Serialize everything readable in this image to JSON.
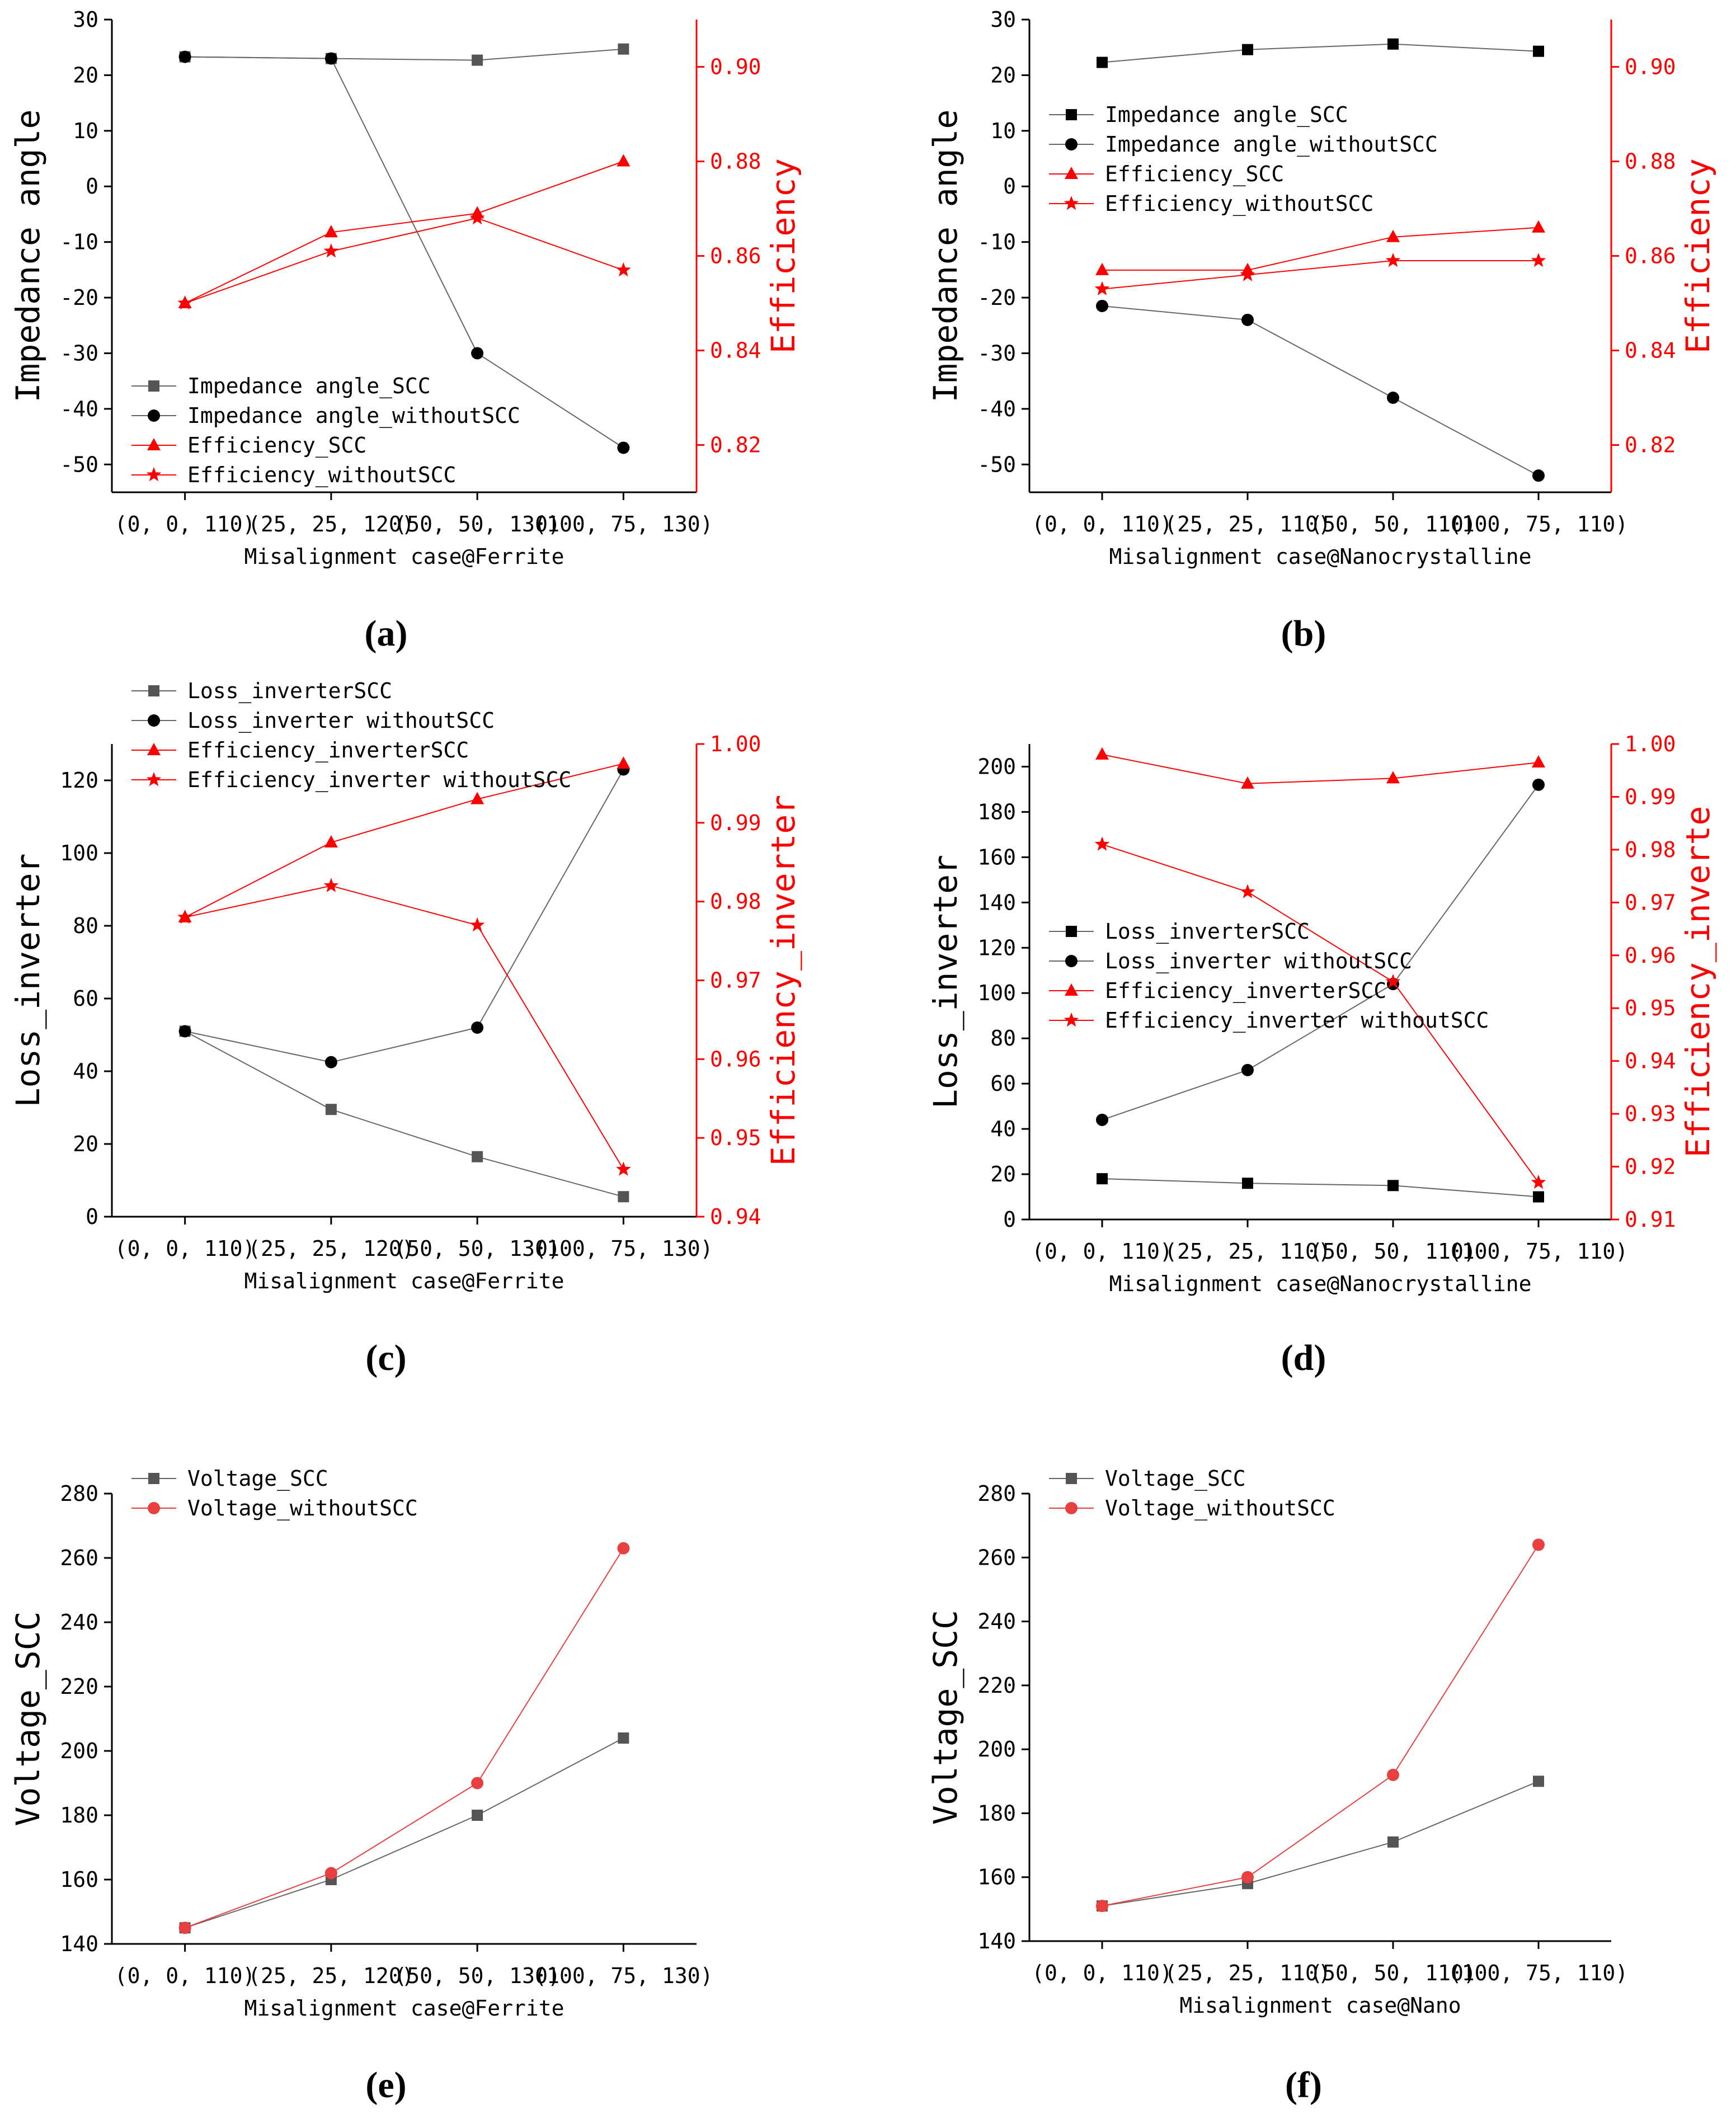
{
  "colors": {
    "scc": "#000000",
    "without": "#000000",
    "eff": "#ff0000",
    "ferriteGrey": "#555555",
    "voltRed": "#e84040",
    "lineGrey": "#888888"
  },
  "panel_labels": [
    "(a)",
    "(b)",
    "(c)",
    "(d)",
    "(e)",
    "(f)"
  ],
  "chart_data": [
    {
      "id": "a",
      "type": "line",
      "categories": [
        "(0, 0, 110)",
        "(25, 25, 120)",
        "(50, 50, 130)",
        "(100, 75, 130)"
      ],
      "xlabel": "Misalignment case@Ferrite",
      "ylabel": "Impedance angle",
      "ylim": [
        -55,
        30
      ],
      "yticks": [
        -50,
        -40,
        -30,
        -20,
        -10,
        0,
        10,
        20,
        30
      ],
      "ytick_labels": [
        "-50",
        "-40",
        "-30",
        "-20",
        "-10",
        "0",
        "10",
        "20",
        "30"
      ],
      "y2label": "Efficiency",
      "y2lim": [
        0.81,
        0.91
      ],
      "y2ticks": [
        0.82,
        0.84,
        0.86,
        0.88,
        0.9
      ],
      "y2tick_labels": [
        "0.82",
        "0.84",
        "0.86",
        "0.88",
        "0.90"
      ],
      "legend": "bottom-left",
      "series": [
        {
          "name": "Impedance angle_SCC",
          "axis": "left",
          "marker": "square",
          "color": "#555555",
          "values": [
            23.3,
            23,
            22.7,
            24.7
          ]
        },
        {
          "name": "Impedance angle_withoutSCC",
          "axis": "left",
          "marker": "circle",
          "color": "#000000",
          "values": [
            23.3,
            23,
            -30,
            -47
          ]
        },
        {
          "name": "Efficiency_SCC",
          "axis": "right",
          "marker": "triangle",
          "color": "#ff0000",
          "values": [
            0.85,
            0.865,
            0.869,
            0.88
          ]
        },
        {
          "name": "Efficiency_withoutSCC",
          "axis": "right",
          "marker": "star",
          "color": "#ff0000",
          "values": [
            0.85,
            0.861,
            0.868,
            0.857
          ]
        }
      ]
    },
    {
      "id": "b",
      "type": "line",
      "categories": [
        "(0, 0, 110)",
        "(25, 25, 110)",
        "(50, 50, 110)",
        "(100, 75, 110)"
      ],
      "xlabel": "Misalignment case@Nanocrystalline",
      "ylabel": "Impedance angle",
      "ylim": [
        -55,
        30
      ],
      "yticks": [
        -50,
        -40,
        -30,
        -20,
        -10,
        0,
        10,
        20,
        30
      ],
      "ytick_labels": [
        "-50",
        "-40",
        "-30",
        "-20",
        "-10",
        "0",
        "10",
        "20",
        "30"
      ],
      "y2label": "Efficiency",
      "y2lim": [
        0.81,
        0.91
      ],
      "y2ticks": [
        0.82,
        0.84,
        0.86,
        0.88,
        0.9
      ],
      "y2tick_labels": [
        "0.82",
        "0.84",
        "0.86",
        "0.88",
        "0.90"
      ],
      "legend": "top-left",
      "series": [
        {
          "name": "Impedance angle_SCC",
          "axis": "left",
          "marker": "square",
          "color": "#000000",
          "values": [
            22.3,
            24.6,
            25.6,
            24.3
          ]
        },
        {
          "name": "Impedance angle_withoutSCC",
          "axis": "left",
          "marker": "circle",
          "color": "#000000",
          "values": [
            -21.5,
            -24,
            -38,
            -52
          ]
        },
        {
          "name": "Efficiency_SCC",
          "axis": "right",
          "marker": "triangle",
          "color": "#ff0000",
          "values": [
            0.857,
            0.857,
            0.864,
            0.866
          ]
        },
        {
          "name": "Efficiency_withoutSCC",
          "axis": "right",
          "marker": "star",
          "color": "#ff0000",
          "values": [
            0.853,
            0.856,
            0.859,
            0.859
          ]
        }
      ]
    },
    {
      "id": "c",
      "type": "line",
      "categories": [
        "(0, 0, 110)",
        "(25, 25, 120)",
        "(50, 50, 130)",
        "(100, 75, 130)"
      ],
      "xlabel": "Misalignment case@Ferrite",
      "ylabel": "Loss_inverter",
      "ylim": [
        0,
        130
      ],
      "yticks": [
        0,
        20,
        40,
        60,
        80,
        100,
        120
      ],
      "ytick_labels": [
        "0",
        "20",
        "40",
        "60",
        "80",
        "100",
        "120"
      ],
      "y2label": "Efficiency_inverter",
      "y2lim": [
        0.94,
        1.0
      ],
      "y2ticks": [
        0.94,
        0.95,
        0.96,
        0.97,
        0.98,
        0.99,
        1.0
      ],
      "y2tick_labels": [
        "0.94",
        "0.95",
        "0.96",
        "0.97",
        "0.98",
        "0.99",
        "1.00"
      ],
      "legend": "above-left",
      "series": [
        {
          "name": "Loss_inverterSCC",
          "axis": "left",
          "marker": "square",
          "color": "#555555",
          "values": [
            51,
            29.5,
            16.5,
            5.5
          ]
        },
        {
          "name": "Loss_inverter withoutSCC",
          "axis": "left",
          "marker": "circle",
          "color": "#000000",
          "values": [
            51,
            42.5,
            52,
            123
          ]
        },
        {
          "name": "Efficiency_inverterSCC",
          "axis": "right",
          "marker": "triangle",
          "color": "#ff0000",
          "values": [
            0.978,
            0.9875,
            0.993,
            0.9975
          ]
        },
        {
          "name": "Efficiency_inverter withoutSCC",
          "axis": "right",
          "marker": "star",
          "color": "#ff0000",
          "values": [
            0.978,
            0.982,
            0.977,
            0.946
          ]
        }
      ]
    },
    {
      "id": "d",
      "type": "line",
      "categories": [
        "(0, 0, 110)",
        "(25, 25, 110)",
        "(50, 50, 110)",
        "(100, 75, 110)"
      ],
      "xlabel": "Misalignment case@Nanocrystalline",
      "ylabel": "Loss_inverter",
      "ylim": [
        0,
        210
      ],
      "yticks": [
        0,
        20,
        40,
        60,
        80,
        100,
        120,
        140,
        160,
        180,
        200
      ],
      "ytick_labels": [
        "0",
        "20",
        "40",
        "60",
        "80",
        "100",
        "120",
        "140",
        "160",
        "180",
        "200"
      ],
      "y2label": "Efficiency_inverte",
      "y2lim": [
        0.91,
        1.0
      ],
      "y2ticks": [
        0.91,
        0.92,
        0.93,
        0.94,
        0.95,
        0.96,
        0.97,
        0.98,
        0.99,
        1.0
      ],
      "y2tick_labels": [
        "0.91",
        "0.92",
        "0.93",
        "0.94",
        "0.95",
        "0.96",
        "0.97",
        "0.98",
        "0.99",
        "1.00"
      ],
      "legend": "center-left",
      "series": [
        {
          "name": "Loss_inverterSCC",
          "axis": "left",
          "marker": "square",
          "color": "#000000",
          "values": [
            18,
            16,
            15,
            10
          ]
        },
        {
          "name": "Loss_inverter withoutSCC",
          "axis": "left",
          "marker": "circle",
          "color": "#000000",
          "values": [
            44,
            66,
            104,
            192
          ]
        },
        {
          "name": "Efficiency_inverterSCC",
          "axis": "right",
          "marker": "triangle",
          "color": "#ff0000",
          "values": [
            0.998,
            0.9925,
            0.9935,
            0.9965
          ]
        },
        {
          "name": "Efficiency_inverter withoutSCC",
          "axis": "right",
          "marker": "star",
          "color": "#ff0000",
          "values": [
            0.981,
            0.972,
            0.955,
            0.917
          ]
        }
      ]
    },
    {
      "id": "e",
      "type": "line",
      "categories": [
        "(0, 0, 110)",
        "(25, 25, 120)",
        "(50, 50, 130)",
        "(100, 75, 130)"
      ],
      "xlabel": "Misalignment case@Ferrite",
      "ylabel": "Voltage_SCC",
      "ylim": [
        140,
        280
      ],
      "yticks": [
        140,
        160,
        180,
        200,
        220,
        240,
        260,
        280
      ],
      "ytick_labels": [
        "140",
        "160",
        "180",
        "200",
        "220",
        "240",
        "260",
        "280"
      ],
      "legend": "top-left",
      "series": [
        {
          "name": "Voltage_SCC",
          "axis": "left",
          "marker": "square",
          "color": "#555555",
          "values": [
            145,
            160,
            180,
            204
          ]
        },
        {
          "name": "Voltage_withoutSCC",
          "axis": "left",
          "marker": "circle",
          "color": "#e84040",
          "values": [
            145,
            162,
            190,
            263
          ]
        }
      ]
    },
    {
      "id": "f",
      "type": "line",
      "categories": [
        "(0, 0, 110)",
        "(25, 25, 110)",
        "(50, 50, 110)",
        "(100, 75, 110)"
      ],
      "xlabel": "Misalignment case@Nano",
      "ylabel": "Voltage_SCC",
      "ylim": [
        140,
        280
      ],
      "yticks": [
        140,
        160,
        180,
        200,
        220,
        240,
        260,
        280
      ],
      "ytick_labels": [
        "140",
        "160",
        "180",
        "200",
        "220",
        "240",
        "260",
        "280"
      ],
      "legend": "top-left",
      "series": [
        {
          "name": "Voltage_SCC",
          "axis": "left",
          "marker": "square",
          "color": "#555555",
          "values": [
            151,
            158,
            171,
            190
          ]
        },
        {
          "name": "Voltage_withoutSCC",
          "axis": "left",
          "marker": "circle",
          "color": "#e84040",
          "values": [
            151,
            160,
            192,
            264
          ]
        }
      ]
    }
  ]
}
